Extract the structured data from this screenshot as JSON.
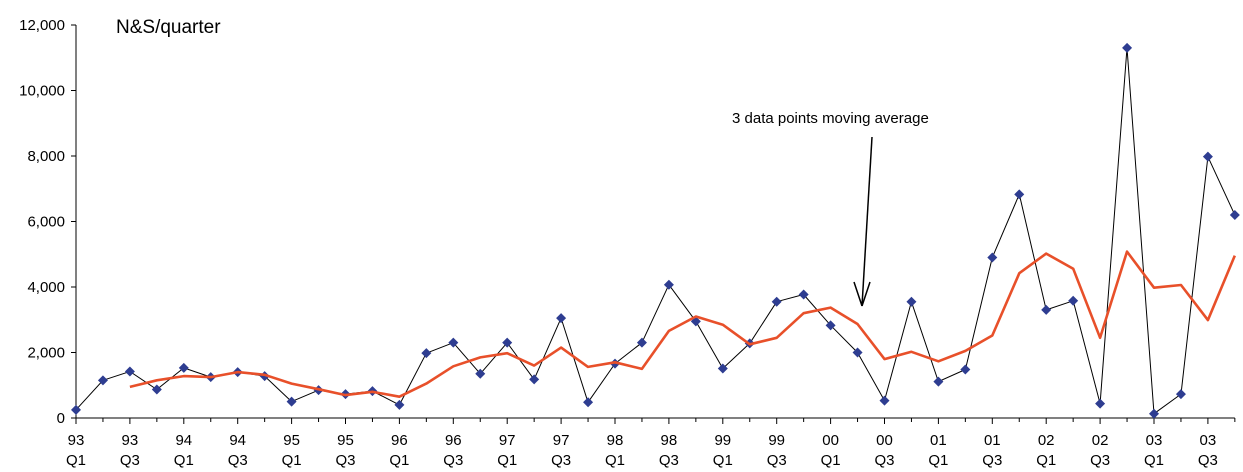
{
  "chart_data": {
    "type": "line",
    "title": "",
    "unit_label": "N&S/quarter",
    "xlabel": "",
    "ylabel": "",
    "ylim": [
      0,
      12000
    ],
    "yticks": [
      "0",
      "2,000",
      "4,000",
      "6,000",
      "8,000",
      "10,000",
      "12,000"
    ],
    "grid": false,
    "x_tick_labels": [
      [
        "93",
        "Q1"
      ],
      [
        "93",
        "Q3"
      ],
      [
        "94",
        "Q1"
      ],
      [
        "94",
        "Q3"
      ],
      [
        "95",
        "Q1"
      ],
      [
        "95",
        "Q3"
      ],
      [
        "96",
        "Q1"
      ],
      [
        "96",
        "Q3"
      ],
      [
        "97",
        "Q1"
      ],
      [
        "97",
        "Q3"
      ],
      [
        "98",
        "Q1"
      ],
      [
        "98",
        "Q3"
      ],
      [
        "99",
        "Q1"
      ],
      [
        "99",
        "Q3"
      ],
      [
        "00",
        "Q1"
      ],
      [
        "00",
        "Q3"
      ],
      [
        "01",
        "Q1"
      ],
      [
        "01",
        "Q3"
      ],
      [
        "02",
        "Q1"
      ],
      [
        "02",
        "Q3"
      ],
      [
        "03",
        "Q1"
      ],
      [
        "03",
        "Q3"
      ]
    ],
    "categories": [
      "93 Q1",
      "93 Q2",
      "93 Q3",
      "93 Q4",
      "94 Q1",
      "94 Q2",
      "94 Q3",
      "94 Q4",
      "95 Q1",
      "95 Q2",
      "95 Q3",
      "95 Q4",
      "96 Q1",
      "96 Q2",
      "96 Q3",
      "96 Q4",
      "97 Q1",
      "97 Q2",
      "97 Q3",
      "97 Q4",
      "98 Q1",
      "98 Q2",
      "98 Q3",
      "98 Q4",
      "99 Q1",
      "99 Q2",
      "99 Q3",
      "99 Q4",
      "00 Q1",
      "00 Q2",
      "00 Q3",
      "00 Q4",
      "01 Q1",
      "01 Q2",
      "01 Q3",
      "01 Q4",
      "02 Q1",
      "02 Q2",
      "02 Q3",
      "02 Q4",
      "03 Q1",
      "03 Q2",
      "03 Q3",
      "03 Q4"
    ],
    "series": [
      {
        "color": "#2e3d91",
        "marker": "diamond",
        "values": [
          250,
          1150,
          1420,
          870,
          1530,
          1250,
          1400,
          1280,
          500,
          850,
          730,
          820,
          400,
          1980,
          2300,
          1350,
          2300,
          1180,
          3050,
          480,
          1660,
          2300,
          4070,
          2950,
          1510,
          2280,
          3550,
          3770,
          2830,
          2000,
          530,
          3550,
          1110,
          1480,
          4900,
          6830,
          3300,
          3580,
          440,
          11300,
          130,
          730,
          7980,
          6200
        ]
      },
      {
        "color": "#e8502a",
        "marker": "none",
        "values": [
          null,
          null,
          950,
          1150,
          1280,
          1250,
          1400,
          1320,
          1050,
          880,
          700,
          800,
          650,
          1050,
          1580,
          1850,
          1980,
          1600,
          2150,
          1560,
          1700,
          1500,
          2660,
          3100,
          2850,
          2250,
          2450,
          3200,
          3370,
          2870,
          1800,
          2020,
          1730,
          2050,
          2520,
          4420,
          5020,
          4560,
          2450,
          5080,
          3980,
          4060,
          2990,
          4960
        ]
      }
    ],
    "annotations": [
      {
        "text": "3 data points moving average"
      }
    ]
  }
}
